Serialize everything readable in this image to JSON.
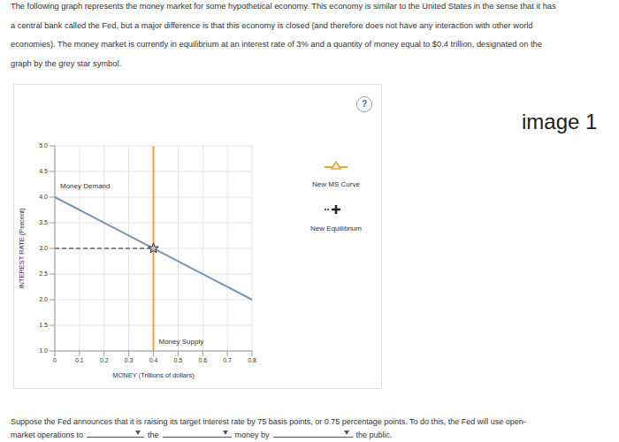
{
  "intro_lines": [
    "The following graph represents the money market for some hypothetical economy. This economy is similar to the United States in the sense that it has",
    "a central bank called the Fed, but a major difference is that this economy is closed (and therefore does not have any interaction with other world",
    "economies). The money market is currently in equilibrium at an interest rate of 3% and a quantity of money equal to $0.4 trillion, designated on the",
    "graph by the grey star symbol."
  ],
  "help_icon": "?",
  "image_label": "image 1",
  "tools": [
    {
      "label": "New MS Curve",
      "color": "#f0a030",
      "marker": "triangle"
    },
    {
      "label": "New Equilibrium",
      "color": "#222222",
      "marker": "plus"
    }
  ],
  "chart_data": {
    "type": "line",
    "x_label": "MONEY (Trillions of dollars)",
    "y_label": "INTEREST RATE (Percent)",
    "xlim": [
      0,
      0.8
    ],
    "xticks": [
      0,
      0.1,
      0.2,
      0.3,
      0.4,
      0.5,
      0.6,
      0.7,
      0.8
    ],
    "ylim": [
      1,
      5
    ],
    "yticks": [
      {
        "value": 1,
        "label": "1.0"
      },
      1.5,
      {
        "value": 2,
        "label": "2.0"
      },
      2.5,
      {
        "value": 3,
        "label": "3.0"
      },
      3.5,
      {
        "value": 4,
        "label": "4.0"
      },
      4.5,
      {
        "value": 5,
        "label": "5.0"
      }
    ],
    "grid": true,
    "series": [
      {
        "name": "Money Demand",
        "color": "#7a95b3",
        "x": [
          0,
          0.8
        ],
        "values": [
          4,
          2
        ]
      },
      {
        "name": "Money Supply",
        "color": "#f0a030",
        "x": [
          0.4,
          0.4
        ],
        "values": [
          1,
          5
        ]
      }
    ],
    "equilibrium": {
      "x": 0.4,
      "y": 3,
      "color": "#bbbbbb",
      "marker": "star"
    }
  },
  "question": {
    "line1": "Suppose the Fed announces that it is raising its target interest rate by 75 basis points, or 0.75 percentage points. To do this, the Fed will use open-",
    "segments": [
      "market operations to",
      "the",
      "money by",
      "the public."
    ]
  }
}
